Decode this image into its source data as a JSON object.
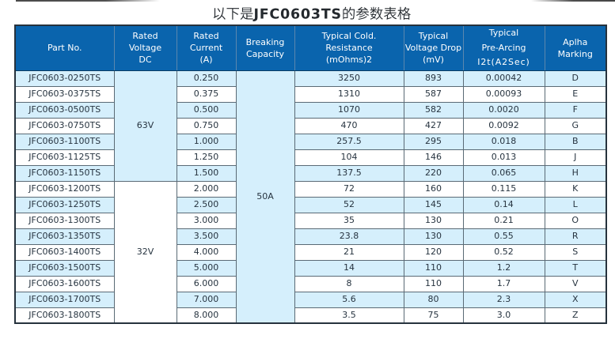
{
  "title": {
    "text": "以下是JFC0603TS的参数表格"
  },
  "table": {
    "headers": [
      {
        "id": "part_no",
        "label": "Part No.",
        "lines": [
          "Part No."
        ]
      },
      {
        "id": "rated_voltage_dc",
        "label": "Rated Voltage DC",
        "lines": [
          "Rated",
          "Voltage",
          "DC"
        ]
      },
      {
        "id": "rated_current_a",
        "label": "Rated Current (A)",
        "lines": [
          "Rated",
          "Current",
          "(A)"
        ]
      },
      {
        "id": "breaking_capacity",
        "label": "Breaking Capacity",
        "lines": [
          "Breaking",
          "Capacity"
        ]
      },
      {
        "id": "typical_cold_resistance",
        "label": "Typical Cold. Resistance (mOhms)2",
        "lines": [
          "Typical Cold.",
          "Resistance",
          "(mOhms)2"
        ]
      },
      {
        "id": "typical_voltage_drop",
        "label": "Typical Voltage Drop (mV)",
        "lines": [
          "Typical",
          "Voltage Drop",
          "(mV)"
        ]
      },
      {
        "id": "typical_pre_arcing",
        "label": "Typical Pre-Arcing I2t(A2Sec)",
        "lines": [
          "Typical",
          "Pre-Arcing",
          "I2t(A2Sec)"
        ]
      },
      {
        "id": "alpha_marking",
        "label": "Aplha Marking",
        "lines": [
          "Aplha",
          "Marking"
        ]
      }
    ],
    "voltage_groups": [
      {
        "label": "63V",
        "rows": 7
      },
      {
        "label": "32V",
        "rows": 9
      }
    ],
    "breaking_capacity": {
      "label": "50A",
      "rows": 16
    },
    "rows": [
      {
        "part_no": "JFC0603-0250TS",
        "current": "0.250",
        "resistance": "3250",
        "voltage_drop": "893",
        "pre_arcing": "0.00042",
        "marking": "D"
      },
      {
        "part_no": "JFC0603-0375TS",
        "current": "0.375",
        "resistance": "1310",
        "voltage_drop": "587",
        "pre_arcing": "0.00093",
        "marking": "E"
      },
      {
        "part_no": "JFC0603-0500TS",
        "current": "0.500",
        "resistance": "1070",
        "voltage_drop": "582",
        "pre_arcing": "0.0020",
        "marking": "F"
      },
      {
        "part_no": "JFC0603-0750TS",
        "current": "0.750",
        "resistance": "470",
        "voltage_drop": "427",
        "pre_arcing": "0.0092",
        "marking": "G"
      },
      {
        "part_no": "JFC0603-1100TS",
        "current": "1.000",
        "resistance": "257.5",
        "voltage_drop": "295",
        "pre_arcing": "0.018",
        "marking": "B"
      },
      {
        "part_no": "JFC0603-1125TS",
        "current": "1.250",
        "resistance": "104",
        "voltage_drop": "146",
        "pre_arcing": "0.013",
        "marking": "J"
      },
      {
        "part_no": "JFC0603-1150TS",
        "current": "1.500",
        "resistance": "137.5",
        "voltage_drop": "220",
        "pre_arcing": "0.065",
        "marking": "H"
      },
      {
        "part_no": "JFC0603-1200TS",
        "current": "2.000",
        "resistance": "72",
        "voltage_drop": "160",
        "pre_arcing": "0.115",
        "marking": "K"
      },
      {
        "part_no": "JFC0603-1250TS",
        "current": "2.500",
        "resistance": "52",
        "voltage_drop": "145",
        "pre_arcing": "0.14",
        "marking": "L"
      },
      {
        "part_no": "JFC0603-1300TS",
        "current": "3.000",
        "resistance": "35",
        "voltage_drop": "130",
        "pre_arcing": "0.21",
        "marking": "O"
      },
      {
        "part_no": "JFC0603-1350TS",
        "current": "3.500",
        "resistance": "23.8",
        "voltage_drop": "130",
        "pre_arcing": "0.55",
        "marking": "R"
      },
      {
        "part_no": "JFC0603-1400TS",
        "current": "4.000",
        "resistance": "21",
        "voltage_drop": "120",
        "pre_arcing": "0.52",
        "marking": "S"
      },
      {
        "part_no": "JFC0603-1500TS",
        "current": "5.000",
        "resistance": "14",
        "voltage_drop": "110",
        "pre_arcing": "1.2",
        "marking": "T"
      },
      {
        "part_no": "JFC0603-1600TS",
        "current": "6.000",
        "resistance": "8",
        "voltage_drop": "110",
        "pre_arcing": "1.7",
        "marking": "V"
      },
      {
        "part_no": "JFC0603-1700TS",
        "current": "7.000",
        "resistance": "5.6",
        "voltage_drop": "80",
        "pre_arcing": "2.3",
        "marking": "X"
      },
      {
        "part_no": "JFC0603-1800TS",
        "current": "8.000",
        "resistance": "3.5",
        "voltage_drop": "75",
        "pre_arcing": "3.0",
        "marking": "Z"
      }
    ]
  },
  "colors": {
    "header_bg": "#0a64ad",
    "header_text": "#ffffff",
    "stripe_blue": "#d5effc",
    "grid_line": "#5a6a75",
    "outer_border": "#26323d",
    "body_text": "#273440",
    "title_text": "#24292e"
  }
}
